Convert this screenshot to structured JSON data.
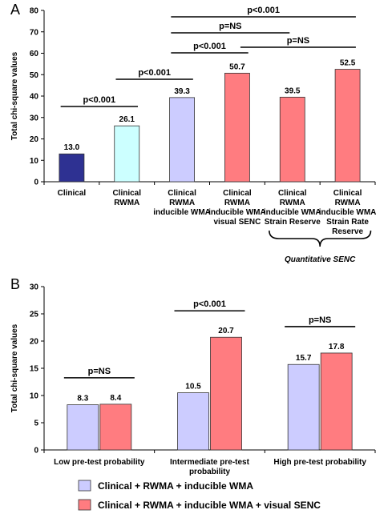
{
  "chart_data": [
    {
      "panel": "A",
      "type": "bar",
      "ylabel": "Total chi-square values",
      "ylim": [
        0,
        80
      ],
      "yticks": [
        0,
        10,
        20,
        30,
        40,
        50,
        60,
        70,
        80
      ],
      "grid": false,
      "categories": [
        [
          "Clinical"
        ],
        [
          "Clinical",
          "RWMA"
        ],
        [
          "Clinical",
          "RWMA",
          "inducible WMA"
        ],
        [
          "Clinical",
          "RWMA",
          "inducible WMA",
          "visual SENC"
        ],
        [
          "Clinical",
          "RWMA",
          "inducible WMA",
          "Strain Reserve"
        ],
        [
          "Clinical",
          "RWMA",
          "inducible WMA",
          "Strain Rate",
          "Reserve"
        ]
      ],
      "values": [
        13.0,
        26.1,
        39.3,
        50.7,
        39.5,
        52.5
      ],
      "value_labels": [
        "13.0",
        "26.1",
        "39.3",
        "50.7",
        "39.5",
        "52.5"
      ],
      "colors": [
        "#2e3192",
        "#ccffff",
        "#ccccff",
        "#ff7c80",
        "#ff7c80",
        "#ff7c80"
      ],
      "brackets": [
        {
          "from": 0,
          "to": 1,
          "label": "p<0.001"
        },
        {
          "from": 1,
          "to": 2,
          "label": "p<0.001"
        },
        {
          "from": 2,
          "to": 3,
          "label": "p<0.001"
        },
        {
          "from": 3,
          "to": 5,
          "label": "p=NS"
        },
        {
          "from": 2,
          "to": 4,
          "label": "p=NS"
        },
        {
          "from": 2,
          "to": 5,
          "label": "p<0.001"
        }
      ],
      "group_annotation": {
        "from": 4,
        "to": 5,
        "label": "Quantitative SENC"
      }
    },
    {
      "panel": "B",
      "type": "bar",
      "ylabel": "Total chi-square values",
      "ylim": [
        0,
        30
      ],
      "yticks": [
        0,
        5,
        10,
        15,
        20,
        25,
        30
      ],
      "grid": false,
      "categories": [
        [
          "Low pre-test probability"
        ],
        [
          "Intermediate pre-test",
          "probability"
        ],
        [
          "High pre-test probability"
        ]
      ],
      "series": [
        {
          "name": "Clinical + RWMA + inducible WMA",
          "color": "#ccccff",
          "values": [
            8.3,
            10.5,
            15.7
          ],
          "value_labels": [
            "8.3",
            "10.5",
            "15.7"
          ]
        },
        {
          "name": "Clinical + RWMA + inducible WMA + visual SENC",
          "color": "#ff7c80",
          "values": [
            8.4,
            20.7,
            17.8
          ],
          "value_labels": [
            "8.4",
            "20.7",
            "17.8"
          ]
        }
      ],
      "significance": [
        "p=NS",
        "p<0.001",
        "p=NS"
      ],
      "legend_position": "bottom"
    }
  ]
}
